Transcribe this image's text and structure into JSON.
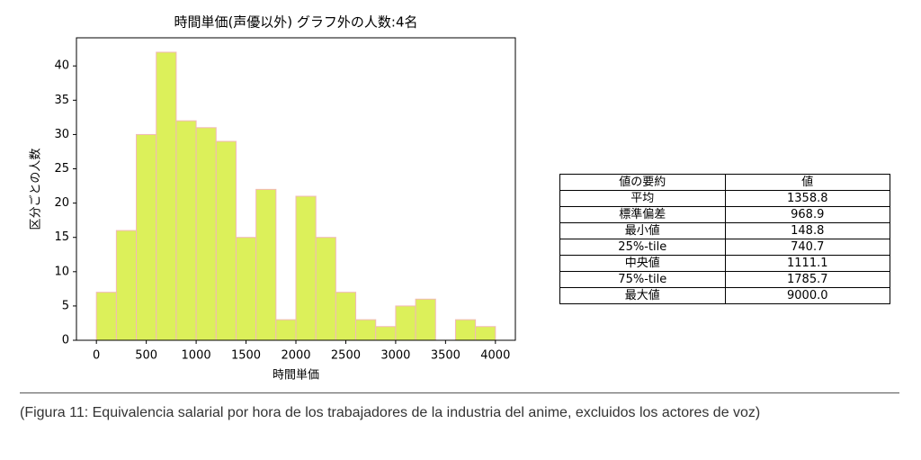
{
  "chart_data": {
    "type": "histogram",
    "title": "時間単価(声優以外) グラフ外の人数:4名",
    "xlabel": "時間単価",
    "ylabel": "区分ごとの人数",
    "bins": [
      0,
      200,
      400,
      600,
      800,
      1000,
      1200,
      1400,
      1600,
      1800,
      2000,
      2200,
      2400,
      2600,
      2800,
      3000,
      3200,
      3400,
      3600,
      3800,
      4000
    ],
    "values": [
      7,
      16,
      30,
      42,
      32,
      31,
      29,
      15,
      22,
      3,
      21,
      15,
      7,
      3,
      2,
      5,
      6,
      0,
      3,
      2
    ],
    "color": "#dcf05a",
    "edgecolor": "#f2b8b8",
    "xlim": [
      -200,
      4200
    ],
    "xticks": [
      0,
      500,
      1000,
      1500,
      2000,
      2500,
      3000,
      3500,
      4000
    ],
    "ylim": [
      0,
      44.1
    ],
    "yticks": [
      0,
      5,
      10,
      15,
      20,
      25,
      30,
      35,
      40
    ]
  },
  "table": {
    "header": [
      "値の要約",
      "値"
    ],
    "rows": [
      [
        "平均",
        "1358.8"
      ],
      [
        "標準偏差",
        "968.9"
      ],
      [
        "最小値",
        "148.8"
      ],
      [
        "25%-tile",
        "740.7"
      ],
      [
        "中央値",
        "1111.1"
      ],
      [
        "75%-tile",
        "1785.7"
      ],
      [
        "最大値",
        "9000.0"
      ]
    ]
  },
  "caption": "(Figura 11: Equivalencia salarial por hora de los trabajadores de la industria del anime, excluidos los actores de voz)"
}
